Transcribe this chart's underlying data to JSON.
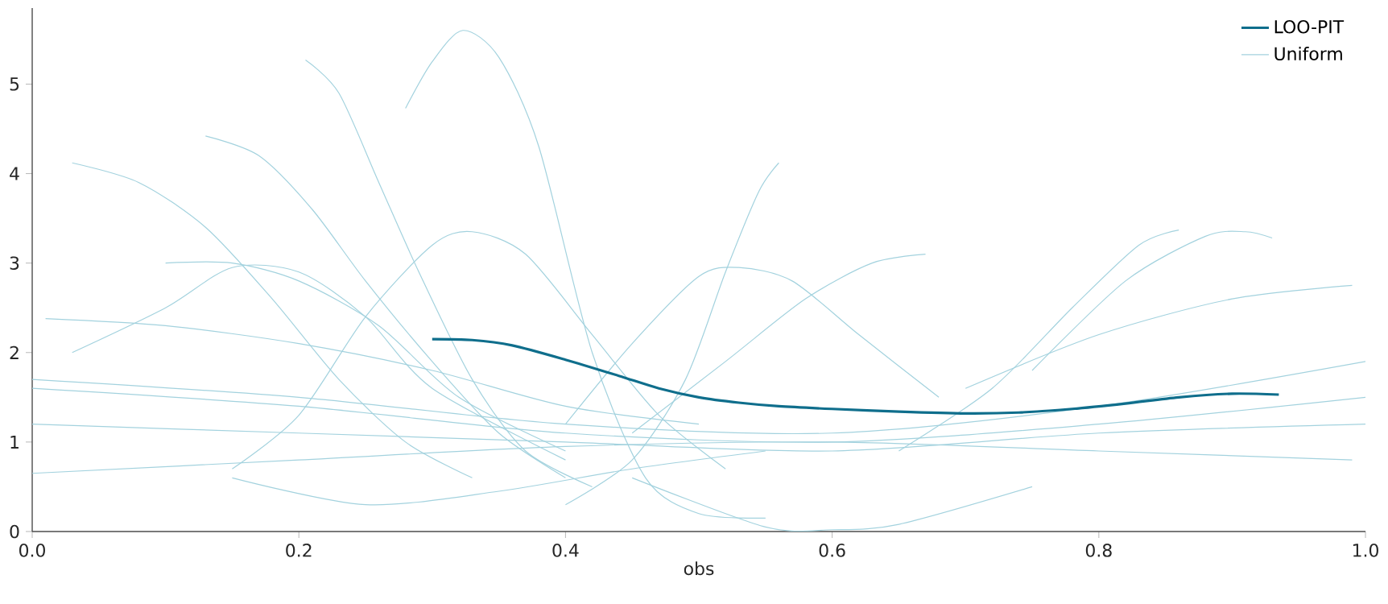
{
  "chart_data": {
    "type": "line",
    "xlabel": "obs",
    "xlim": [
      0,
      1
    ],
    "ylim": [
      0,
      5.85
    ],
    "xticks": [
      {
        "value": 0,
        "label": "0.0"
      },
      {
        "value": 0.2,
        "label": "0.2"
      },
      {
        "value": 0.4,
        "label": "0.4"
      },
      {
        "value": 0.6,
        "label": "0.6"
      },
      {
        "value": 0.8,
        "label": "0.8"
      },
      {
        "value": 1,
        "label": "1.0"
      }
    ],
    "yticks": [
      0,
      1,
      2,
      3,
      4,
      5
    ],
    "grid": false,
    "legend": "top right",
    "marker": "none",
    "line_style": "solid",
    "series": [
      {
        "name": "LOO-PIT",
        "color": "#0f6e8c",
        "x": [
          0.3,
          0.33,
          0.36,
          0.4,
          0.44,
          0.47,
          0.5,
          0.53,
          0.56,
          0.6,
          0.65,
          0.7,
          0.74,
          0.78,
          0.82,
          0.86,
          0.9,
          0.935
        ],
        "values": [
          2.15,
          2.14,
          2.08,
          1.92,
          1.74,
          1.6,
          1.5,
          1.44,
          1.4,
          1.37,
          1.34,
          1.32,
          1.33,
          1.37,
          1.43,
          1.5,
          1.54,
          1.53
        ]
      },
      {
        "name": "Uniform",
        "color": "#a3d2de",
        "x": [
          0.0,
          0.2,
          0.4,
          0.6,
          0.8,
          1.0
        ],
        "values": [
          1.6,
          1.4,
          1.1,
          1.0,
          1.2,
          1.5
        ]
      },
      {
        "color": "#a3d2de",
        "x": [
          0.28,
          0.3,
          0.323,
          0.35,
          0.38,
          0.42,
          0.46,
          0.5,
          0.55
        ],
        "values": [
          4.73,
          5.25,
          5.6,
          5.3,
          4.3,
          2.0,
          0.6,
          0.2,
          0.15
        ]
      },
      {
        "color": "#a3d2de",
        "x": [
          0.205,
          0.23,
          0.26,
          0.29,
          0.33,
          0.37,
          0.42
        ],
        "values": [
          5.27,
          4.9,
          3.9,
          2.9,
          1.7,
          0.9,
          0.5
        ]
      },
      {
        "color": "#a3d2de",
        "x": [
          0.03,
          0.08,
          0.13,
          0.18,
          0.23,
          0.28,
          0.33
        ],
        "values": [
          4.12,
          3.9,
          3.4,
          2.6,
          1.7,
          1.0,
          0.6
        ]
      },
      {
        "color": "#a3d2de",
        "x": [
          0.13,
          0.17,
          0.21,
          0.25,
          0.3,
          0.35,
          0.4
        ],
        "values": [
          4.42,
          4.2,
          3.6,
          2.8,
          1.9,
          1.1,
          0.6
        ]
      },
      {
        "color": "#a3d2de",
        "x": [
          0.15,
          0.2,
          0.25,
          0.3,
          0.33,
          0.37,
          0.42,
          0.47,
          0.52
        ],
        "values": [
          0.7,
          1.3,
          2.4,
          3.2,
          3.35,
          3.1,
          2.2,
          1.3,
          0.7
        ]
      },
      {
        "color": "#a3d2de",
        "x": [
          0.4,
          0.45,
          0.49,
          0.52,
          0.545,
          0.56
        ],
        "values": [
          0.3,
          0.8,
          1.7,
          2.9,
          3.8,
          4.12
        ]
      },
      {
        "color": "#a3d2de",
        "x": [
          0.4,
          0.45,
          0.5,
          0.53,
          0.57,
          0.62,
          0.68
        ],
        "values": [
          1.2,
          2.1,
          2.85,
          2.95,
          2.8,
          2.2,
          1.5
        ]
      },
      {
        "color": "#a3d2de",
        "x": [
          0.45,
          0.52,
          0.58,
          0.63,
          0.67
        ],
        "values": [
          1.1,
          1.9,
          2.6,
          3.0,
          3.1
        ]
      },
      {
        "color": "#a3d2de",
        "x": [
          0.65,
          0.72,
          0.78,
          0.83,
          0.86
        ],
        "values": [
          0.9,
          1.6,
          2.5,
          3.2,
          3.37
        ]
      },
      {
        "color": "#a3d2de",
        "x": [
          0.75,
          0.82,
          0.88,
          0.91,
          0.93
        ],
        "values": [
          1.8,
          2.8,
          3.3,
          3.35,
          3.28
        ]
      },
      {
        "color": "#a3d2de",
        "x": [
          0.7,
          0.8,
          0.9,
          0.99
        ],
        "values": [
          1.6,
          2.2,
          2.6,
          2.75
        ]
      },
      {
        "color": "#a3d2de",
        "x": [
          0.45,
          0.55,
          0.6,
          0.65,
          0.75
        ],
        "values": [
          0.6,
          0.05,
          0.02,
          0.08,
          0.5
        ]
      },
      {
        "color": "#a3d2de",
        "x": [
          0.0,
          0.2,
          0.4,
          0.6,
          0.8,
          0.99
        ],
        "values": [
          0.65,
          0.8,
          0.95,
          1.0,
          0.9,
          0.8
        ]
      },
      {
        "color": "#a3d2de",
        "x": [
          0.03,
          0.1,
          0.15,
          0.2,
          0.25,
          0.3,
          0.4
        ],
        "values": [
          2.0,
          2.5,
          2.95,
          2.9,
          2.4,
          1.6,
          0.8
        ]
      },
      {
        "color": "#a3d2de",
        "x": [
          0.01,
          0.1,
          0.2,
          0.3,
          0.4,
          0.5
        ],
        "values": [
          2.38,
          2.3,
          2.1,
          1.8,
          1.4,
          1.2
        ]
      },
      {
        "color": "#a3d2de",
        "x": [
          0.1,
          0.15,
          0.2,
          0.26,
          0.32,
          0.4
        ],
        "values": [
          3.0,
          3.0,
          2.8,
          2.3,
          1.5,
          0.9
        ]
      },
      {
        "color": "#a3d2de",
        "x": [
          0.15,
          0.25,
          0.35,
          0.45,
          0.55
        ],
        "values": [
          0.6,
          0.3,
          0.45,
          0.7,
          0.9
        ]
      },
      {
        "color": "#a3d2de",
        "x": [
          0.0,
          0.2,
          0.4,
          0.6,
          0.8,
          1.0
        ],
        "values": [
          1.2,
          1.1,
          1.0,
          0.9,
          1.1,
          1.2
        ]
      },
      {
        "color": "#a3d2de",
        "x": [
          0.0,
          0.2,
          0.4,
          0.6,
          0.8,
          1.0
        ],
        "values": [
          1.7,
          1.5,
          1.2,
          1.1,
          1.4,
          1.9
        ]
      }
    ]
  }
}
